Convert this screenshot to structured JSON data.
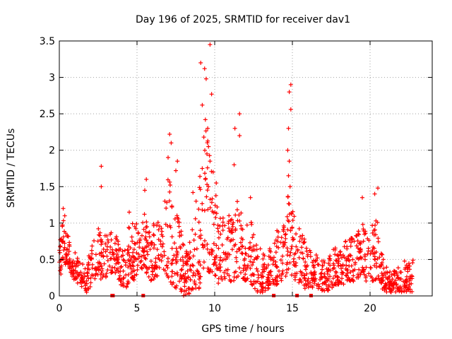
{
  "chart_data": {
    "type": "scatter",
    "title": "Day 196 of 2025, SRMTID for receiver dav1",
    "xlabel": "GPS time / hours",
    "ylabel": "SRMTID / TECUs",
    "xlim": [
      0,
      24
    ],
    "ylim": [
      0,
      3.5
    ],
    "xticks": [
      0,
      5,
      10,
      15,
      20
    ],
    "yticks": [
      0,
      0.5,
      1,
      1.5,
      2,
      2.5,
      3,
      3.5
    ],
    "ytick_labels": [
      "0",
      "0.5",
      "1",
      "1.5",
      "2",
      "2.5",
      "3",
      "3.5"
    ],
    "grid": true,
    "marker": "+",
    "color": "#ff0000",
    "x_range_observed": [
      0,
      22.8
    ],
    "gap_markers_x": [
      3.4,
      3.45,
      5.4,
      13.8,
      15.3,
      16.2
    ],
    "envelope_hours": [
      0,
      0.25,
      0.5,
      0.75,
      1,
      1.25,
      1.5,
      1.75,
      2,
      2.25,
      2.5,
      2.75,
      3,
      3.25,
      3.5,
      3.75,
      4,
      4.25,
      4.5,
      4.75,
      5,
      5.25,
      5.5,
      5.75,
      6,
      6.25,
      6.5,
      6.75,
      7,
      7.25,
      7.5,
      7.75,
      8,
      8.25,
      8.5,
      8.75,
      9,
      9.25,
      9.5,
      9.75,
      10,
      10.25,
      10.5,
      10.75,
      11,
      11.25,
      11.5,
      11.75,
      12,
      12.25,
      12.5,
      12.75,
      13,
      13.25,
      13.5,
      13.75,
      14,
      14.25,
      14.5,
      14.75,
      15,
      15.25,
      15.5,
      15.75,
      16,
      16.25,
      16.5,
      16.75,
      17,
      17.25,
      17.5,
      17.75,
      18,
      18.25,
      18.5,
      18.75,
      19,
      19.25,
      19.5,
      19.75,
      20,
      20.25,
      20.5,
      20.75,
      21,
      21.25,
      21.5,
      21.75,
      22,
      22.25,
      22.5,
      22.75
    ],
    "envelope_low": [
      0.3,
      0.5,
      0.55,
      0.4,
      0.3,
      0.25,
      0.2,
      0.15,
      0.2,
      0.3,
      0.4,
      0.3,
      0.35,
      0.4,
      0.4,
      0.3,
      0.2,
      0.2,
      0.25,
      0.3,
      0.35,
      0.4,
      0.5,
      0.3,
      0.3,
      0.35,
      0.4,
      0.35,
      0.3,
      0.25,
      0.2,
      0.15,
      0.1,
      0.1,
      0.15,
      0.2,
      0.2,
      0.35,
      0.45,
      0.4,
      0.3,
      0.25,
      0.3,
      0.35,
      0.3,
      0.3,
      0.35,
      0.35,
      0.3,
      0.3,
      0.2,
      0.15,
      0.15,
      0.15,
      0.2,
      0.25,
      0.25,
      0.3,
      0.35,
      0.4,
      0.35,
      0.3,
      0.25,
      0.2,
      0.2,
      0.2,
      0.2,
      0.15,
      0.15,
      0.15,
      0.2,
      0.25,
      0.25,
      0.25,
      0.3,
      0.3,
      0.3,
      0.35,
      0.35,
      0.3,
      0.25,
      0.3,
      0.35,
      0.2,
      0.15,
      0.15,
      0.15,
      0.15,
      0.15,
      0.15,
      0.15,
      0.15
    ],
    "envelope_high": [
      0.7,
      1.1,
      0.95,
      0.6,
      0.6,
      0.5,
      0.45,
      0.35,
      0.6,
      0.9,
      1.0,
      0.8,
      0.85,
      0.9,
      0.9,
      0.8,
      0.6,
      0.7,
      1.0,
      1.0,
      1.0,
      0.9,
      1.2,
      0.9,
      1.0,
      1.0,
      1.1,
      1.2,
      1.8,
      1.5,
      1.2,
      1.0,
      0.7,
      0.6,
      0.9,
      1.3,
      1.6,
      2.2,
      2.4,
      1.8,
      1.5,
      1.2,
      1.1,
      1.0,
      1.2,
      1.1,
      1.4,
      1.2,
      1.1,
      1.1,
      0.9,
      0.8,
      0.6,
      0.6,
      0.7,
      0.7,
      0.9,
      1.0,
      1.1,
      1.5,
      1.2,
      1.0,
      0.9,
      0.8,
      0.7,
      0.6,
      0.6,
      0.5,
      0.5,
      0.5,
      0.6,
      0.7,
      0.7,
      0.7,
      0.8,
      0.8,
      0.8,
      0.9,
      1.0,
      0.9,
      0.9,
      1.1,
      1.2,
      0.6,
      0.4,
      0.4,
      0.4,
      0.4,
      0.4,
      0.5,
      0.6,
      0.5
    ],
    "highlight_points": [
      {
        "x": 9.7,
        "y": 3.45
      },
      {
        "x": 9.1,
        "y": 3.2
      },
      {
        "x": 9.35,
        "y": 3.12
      },
      {
        "x": 9.45,
        "y": 2.98
      },
      {
        "x": 9.8,
        "y": 2.77
      },
      {
        "x": 9.2,
        "y": 2.62
      },
      {
        "x": 9.4,
        "y": 2.42
      },
      {
        "x": 9.55,
        "y": 2.3
      },
      {
        "x": 9.3,
        "y": 2.18
      },
      {
        "x": 9.6,
        "y": 2.05
      },
      {
        "x": 9.5,
        "y": 1.95
      },
      {
        "x": 9.7,
        "y": 1.85
      },
      {
        "x": 9.2,
        "y": 1.75
      },
      {
        "x": 9.4,
        "y": 1.6
      },
      {
        "x": 9.6,
        "y": 1.5
      },
      {
        "x": 9.9,
        "y": 1.7
      },
      {
        "x": 10.1,
        "y": 1.55
      },
      {
        "x": 8.8,
        "y": 1.3
      },
      {
        "x": 8.6,
        "y": 1.42
      },
      {
        "x": 7.1,
        "y": 2.22
      },
      {
        "x": 7.2,
        "y": 2.1
      },
      {
        "x": 7.0,
        "y": 1.9
      },
      {
        "x": 7.6,
        "y": 1.85
      },
      {
        "x": 7.5,
        "y": 1.72
      },
      {
        "x": 11.6,
        "y": 2.5
      },
      {
        "x": 11.3,
        "y": 2.3
      },
      {
        "x": 11.6,
        "y": 2.2
      },
      {
        "x": 11.25,
        "y": 1.8
      },
      {
        "x": 14.9,
        "y": 2.9
      },
      {
        "x": 14.8,
        "y": 2.8
      },
      {
        "x": 14.9,
        "y": 2.56
      },
      {
        "x": 14.75,
        "y": 2.3
      },
      {
        "x": 14.7,
        "y": 2.0
      },
      {
        "x": 14.8,
        "y": 1.85
      },
      {
        "x": 14.75,
        "y": 1.65
      },
      {
        "x": 14.85,
        "y": 1.5
      },
      {
        "x": 2.7,
        "y": 1.78
      },
      {
        "x": 2.7,
        "y": 1.5
      },
      {
        "x": 5.6,
        "y": 1.6
      },
      {
        "x": 5.5,
        "y": 1.45
      },
      {
        "x": 20.5,
        "y": 1.48
      },
      {
        "x": 20.3,
        "y": 1.4
      },
      {
        "x": 19.5,
        "y": 1.35
      },
      {
        "x": 0.25,
        "y": 1.2
      },
      {
        "x": 0.35,
        "y": 1.1
      },
      {
        "x": 1.9,
        "y": 0.55
      },
      {
        "x": 4.5,
        "y": 1.15
      },
      {
        "x": 12.3,
        "y": 1.35
      }
    ]
  }
}
